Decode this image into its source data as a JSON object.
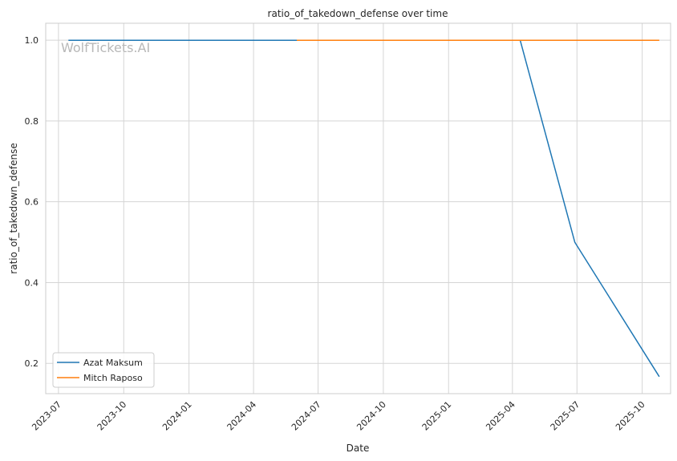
{
  "chart_data": {
    "type": "line",
    "title": "ratio_of_takedown_defense over time",
    "xlabel": "Date",
    "ylabel": "ratio_of_takedown_defense",
    "watermark": "WolfTickets.AI",
    "x_axis": {
      "type": "date",
      "range": [
        "2023-06-13",
        "2025-11-10"
      ],
      "ticks": [
        "2023-07",
        "2023-10",
        "2024-01",
        "2024-04",
        "2024-07",
        "2024-10",
        "2025-01",
        "2025-04",
        "2025-07",
        "2025-10"
      ]
    },
    "y_axis": {
      "range": [
        0.125,
        1.042
      ],
      "ticks": [
        "0.2",
        "0.4",
        "0.6",
        "0.8",
        "1.0"
      ]
    },
    "grid": true,
    "legend_position": "lower-left",
    "series": [
      {
        "name": "Azat Maksum",
        "color": "#1f77b4",
        "points": [
          {
            "x": "2023-07-15",
            "y": 1.0
          },
          {
            "x": "2025-04-12",
            "y": 1.0
          },
          {
            "x": "2025-06-28",
            "y": 0.5
          },
          {
            "x": "2025-10-25",
            "y": 0.167
          }
        ]
      },
      {
        "name": "Mitch Raposo",
        "color": "#ff7f0e",
        "points": [
          {
            "x": "2024-06-01",
            "y": 1.0
          },
          {
            "x": "2025-04-05",
            "y": 1.0
          },
          {
            "x": "2025-10-25",
            "y": 1.0
          }
        ]
      }
    ]
  }
}
